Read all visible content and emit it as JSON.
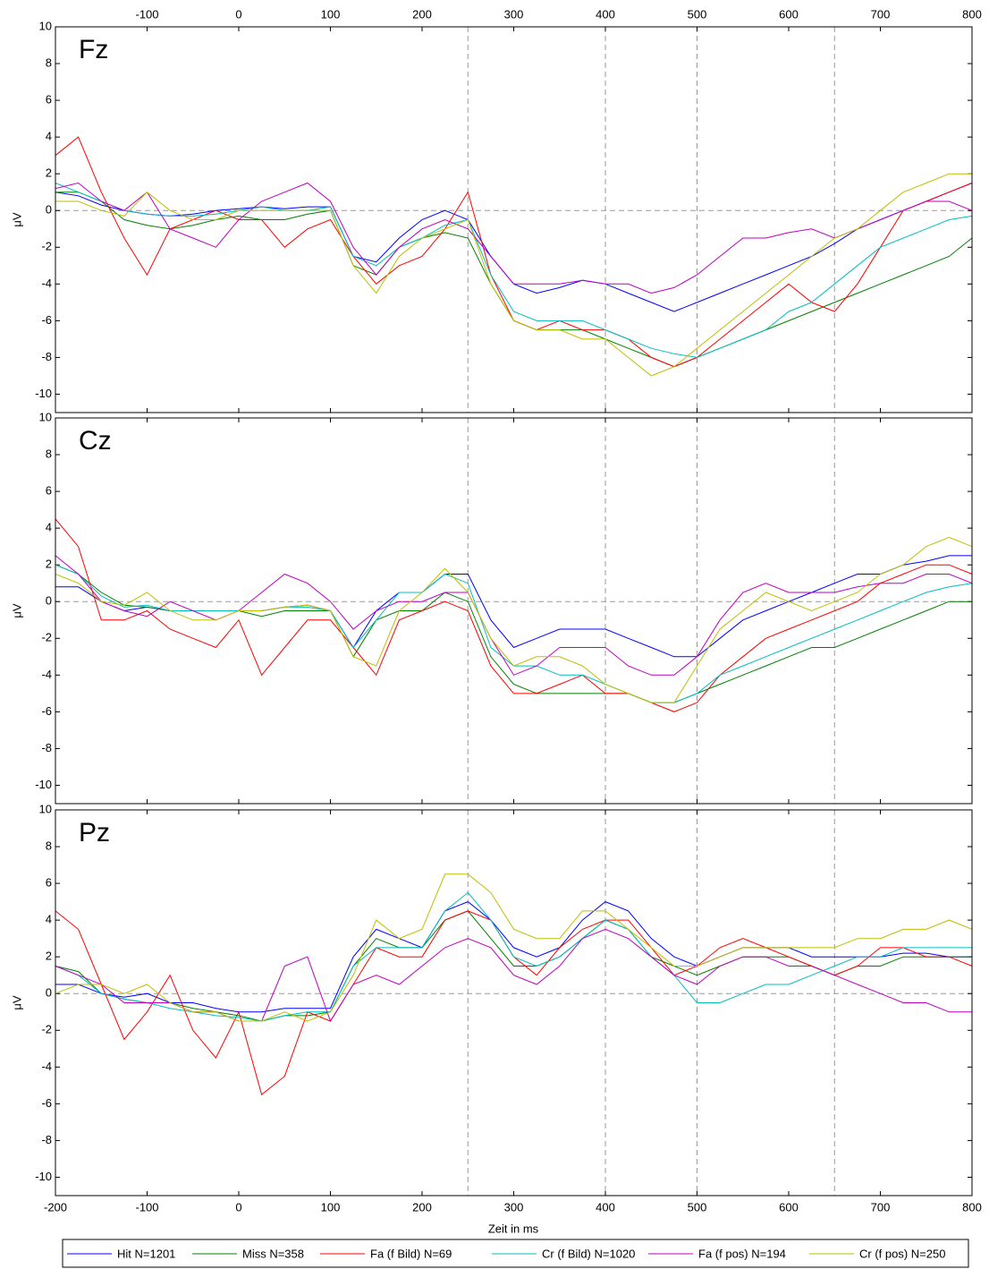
{
  "x": [
    -200,
    -175,
    -150,
    -125,
    -100,
    -75,
    -50,
    -25,
    0,
    25,
    50,
    75,
    100,
    125,
    150,
    175,
    200,
    225,
    250,
    275,
    300,
    325,
    350,
    375,
    400,
    425,
    450,
    475,
    500,
    525,
    550,
    575,
    600,
    625,
    650,
    675,
    700,
    725,
    750,
    775,
    800
  ],
  "xlim": [
    -200,
    800
  ],
  "xticks": [
    -200,
    -100,
    0,
    100,
    200,
    300,
    400,
    500,
    600,
    700,
    800
  ],
  "top_xticks": [
    -100,
    0,
    100,
    200,
    300,
    400,
    500,
    600,
    700,
    800
  ],
  "xlabel": "Zeit in ms",
  "ylabel": "μV",
  "vlines": [
    250,
    400,
    500,
    650
  ],
  "hline": 0,
  "legend": [
    {
      "name": "Hit N=1201",
      "color": "#0000ff"
    },
    {
      "name": "Miss N=358",
      "color": "#008000"
    },
    {
      "name": "Fa (f Bild) N=69",
      "color": "#ff0000"
    },
    {
      "name": "Cr (f Bild) N=1020",
      "color": "#00bfbf"
    },
    {
      "name": "Fa (f pos) N=194",
      "color": "#bf00bf"
    },
    {
      "name": "Cr (f pos) N=250",
      "color": "#bfbf00"
    }
  ],
  "chart_data": [
    {
      "type": "line",
      "title": "Fz",
      "ylim": [
        -11,
        10
      ],
      "yticks": [
        -10,
        -8,
        -6,
        -4,
        -2,
        0,
        2,
        4,
        6,
        8,
        10
      ],
      "xtick_labels": "top",
      "series": [
        {
          "values": [
            1.0,
            0.8,
            0.3,
            0.0,
            -0.2,
            -0.3,
            -0.2,
            0,
            0.1,
            0.2,
            0.1,
            0.2,
            0.2,
            -2.5,
            -2.8,
            -1.5,
            -0.5,
            0.0,
            -0.5,
            -2.5,
            -4.0,
            -4.5,
            -4.2,
            -3.8,
            -4.0,
            -4.5,
            -5.0,
            -5.5,
            -5.0,
            -4.5,
            -4.0,
            -3.5,
            -3.0,
            -2.5,
            -1.8,
            -1.0,
            -0.5,
            0.0,
            0.5,
            1.0,
            1.5
          ]
        },
        {
          "values": [
            1.0,
            1.0,
            0.5,
            -0.5,
            -0.8,
            -1.0,
            -0.8,
            -0.5,
            -0.3,
            -0.5,
            -0.5,
            -0.2,
            0.0,
            -3.0,
            -3.5,
            -2.0,
            -1.5,
            -1.2,
            -1.5,
            -4.0,
            -6.0,
            -6.5,
            -6.5,
            -6.5,
            -7.0,
            -7.5,
            -8.0,
            -8.5,
            -8.0,
            -7.5,
            -7.0,
            -6.5,
            -6.0,
            -5.5,
            -5.0,
            -4.5,
            -4.0,
            -3.5,
            -3.0,
            -2.5,
            -1.5
          ]
        },
        {
          "values": [
            3.0,
            4.0,
            1.0,
            -1.5,
            -3.5,
            -1.0,
            -0.5,
            0.0,
            -0.5,
            -0.5,
            -2.0,
            -1.0,
            -0.5,
            -2.5,
            -4.0,
            -3.0,
            -2.5,
            -1.0,
            1.0,
            -3.5,
            -6.0,
            -6.5,
            -6.0,
            -6.5,
            -6.5,
            -7.0,
            -8.0,
            -8.5,
            -8.0,
            -7.0,
            -6.0,
            -5.0,
            -4.0,
            -5.0,
            -5.5,
            -4.0,
            -2.0,
            0.0,
            0.5,
            1.0,
            1.5
          ]
        },
        {
          "values": [
            1.5,
            1.0,
            0.5,
            0.0,
            -0.2,
            -0.3,
            -0.3,
            -0.2,
            0.0,
            0.2,
            0.0,
            0.0,
            0.2,
            -2.5,
            -3.0,
            -2.0,
            -1.5,
            -0.8,
            -0.5,
            -3.5,
            -5.5,
            -6.0,
            -6.0,
            -6.0,
            -6.5,
            -7.0,
            -7.5,
            -7.8,
            -8.0,
            -7.5,
            -7.0,
            -6.5,
            -5.5,
            -5.0,
            -4.0,
            -3.0,
            -2.0,
            -1.5,
            -1.0,
            -0.5,
            -0.3
          ]
        },
        {
          "values": [
            1.2,
            1.5,
            0.5,
            0.0,
            1.0,
            -1.0,
            -1.5,
            -2.0,
            -0.5,
            0.5,
            1.0,
            1.5,
            0.5,
            -2.0,
            -3.5,
            -2.0,
            -1.0,
            -0.5,
            -1.0,
            -2.5,
            -4.0,
            -4.0,
            -4.0,
            -3.8,
            -4.0,
            -4.0,
            -4.5,
            -4.2,
            -3.5,
            -2.5,
            -1.5,
            -1.5,
            -1.2,
            -1.0,
            -1.5,
            -1.0,
            -0.5,
            0.0,
            0.5,
            0.5,
            0.0
          ]
        },
        {
          "values": [
            0.5,
            0.5,
            0.0,
            -0.3,
            1.0,
            0.0,
            -0.5,
            -0.5,
            0.0,
            0.0,
            0.0,
            0.0,
            0.0,
            -3.0,
            -4.5,
            -2.5,
            -1.5,
            -1.0,
            -0.5,
            -4.0,
            -6.0,
            -6.5,
            -6.5,
            -7.0,
            -7.0,
            -8.0,
            -9.0,
            -8.5,
            -7.5,
            -6.5,
            -5.5,
            -4.5,
            -3.5,
            -2.5,
            -1.5,
            -1.0,
            0.0,
            1.0,
            1.5,
            2.0,
            2.0
          ]
        }
      ]
    },
    {
      "type": "line",
      "title": "Cz",
      "ylim": [
        -11,
        10
      ],
      "yticks": [
        -10,
        -8,
        -6,
        -4,
        -2,
        0,
        2,
        4,
        6,
        8,
        10
      ],
      "xtick_labels": "none",
      "series": [
        {
          "values": [
            0.8,
            0.8,
            0.0,
            -0.5,
            -0.3,
            -0.5,
            -0.5,
            -0.5,
            -0.5,
            -0.5,
            -0.3,
            -0.2,
            -0.5,
            -2.5,
            -0.5,
            0.5,
            0.5,
            1.5,
            1.5,
            -1.0,
            -2.5,
            -2.0,
            -1.5,
            -1.5,
            -1.5,
            -2.0,
            -2.5,
            -3.0,
            -3.0,
            -2.0,
            -1.0,
            -0.5,
            0.0,
            0.5,
            1.0,
            1.5,
            1.5,
            2.0,
            2.2,
            2.5,
            2.5
          ]
        },
        {
          "values": [
            2.0,
            1.5,
            0.5,
            -0.2,
            -0.3,
            -0.5,
            -0.5,
            -0.5,
            -0.5,
            -0.8,
            -0.5,
            -0.5,
            -0.5,
            -3.0,
            -1.0,
            -0.5,
            -0.5,
            0.5,
            0.0,
            -3.0,
            -4.5,
            -5.0,
            -5.0,
            -5.0,
            -5.0,
            -5.0,
            -5.5,
            -5.5,
            -5.0,
            -4.5,
            -4.0,
            -3.5,
            -3.0,
            -2.5,
            -2.5,
            -2.0,
            -1.5,
            -1.0,
            -0.5,
            0.0,
            0.0
          ]
        },
        {
          "values": [
            4.5,
            3.0,
            -1.0,
            -1.0,
            -0.5,
            -1.5,
            -2.0,
            -2.5,
            -1.0,
            -4.0,
            -2.5,
            -1.0,
            -1.0,
            -2.5,
            -4.0,
            -1.0,
            -0.5,
            0.0,
            -0.5,
            -3.5,
            -5.0,
            -5.0,
            -4.5,
            -4.0,
            -5.0,
            -5.0,
            -5.5,
            -6.0,
            -5.5,
            -4.0,
            -3.0,
            -2.0,
            -1.5,
            -1.0,
            -0.5,
            0.0,
            1.0,
            1.5,
            2.0,
            2.0,
            1.5
          ]
        },
        {
          "values": [
            2.0,
            1.5,
            0.3,
            -0.3,
            -0.2,
            -0.5,
            -0.5,
            -0.5,
            -0.5,
            -0.5,
            -0.3,
            -0.3,
            -0.5,
            -2.5,
            -1.0,
            0.5,
            0.5,
            1.5,
            1.0,
            -2.5,
            -3.5,
            -3.5,
            -4.0,
            -4.0,
            -4.5,
            -5.0,
            -5.5,
            -5.5,
            -5.0,
            -4.0,
            -3.5,
            -3.0,
            -2.5,
            -2.0,
            -1.5,
            -1.0,
            -0.5,
            0.0,
            0.5,
            0.8,
            1.0
          ]
        },
        {
          "values": [
            2.5,
            1.5,
            0.0,
            -0.5,
            -0.8,
            0.0,
            -0.5,
            -1.0,
            -0.5,
            0.5,
            1.5,
            1.0,
            0.0,
            -1.5,
            -0.5,
            0.0,
            0.0,
            0.5,
            0.5,
            -2.0,
            -4.0,
            -3.5,
            -2.5,
            -2.5,
            -2.5,
            -3.5,
            -4.0,
            -4.0,
            -3.0,
            -1.0,
            0.5,
            1.0,
            0.5,
            0.5,
            0.5,
            0.8,
            1.0,
            1.0,
            1.5,
            1.5,
            1.0
          ]
        },
        {
          "values": [
            1.5,
            1.0,
            0.0,
            -0.2,
            0.5,
            -0.5,
            -1.0,
            -1.0,
            -0.5,
            -0.5,
            -0.3,
            -0.2,
            -0.5,
            -3.0,
            -3.5,
            -0.5,
            0.5,
            1.8,
            0.5,
            -2.0,
            -3.5,
            -3.0,
            -3.0,
            -3.5,
            -4.5,
            -5.0,
            -5.5,
            -5.5,
            -3.5,
            -1.5,
            -0.5,
            0.5,
            0.0,
            -0.5,
            0.0,
            0.5,
            1.5,
            2.0,
            3.0,
            3.5,
            3.0
          ]
        }
      ]
    },
    {
      "type": "line",
      "title": "Pz",
      "ylim": [
        -11,
        10
      ],
      "yticks": [
        -10,
        -8,
        -6,
        -4,
        -2,
        0,
        2,
        4,
        6,
        8,
        10
      ],
      "xtick_labels": "bottom",
      "series": [
        {
          "values": [
            0.5,
            0.5,
            0.0,
            -0.2,
            0.0,
            -0.5,
            -0.5,
            -0.8,
            -1.0,
            -1.0,
            -0.8,
            -0.8,
            -0.8,
            2.0,
            3.5,
            3.0,
            2.5,
            4.5,
            5.0,
            4.0,
            2.5,
            2.0,
            2.5,
            4.0,
            5.0,
            4.5,
            3.0,
            2.0,
            1.5,
            2.0,
            2.5,
            2.5,
            2.5,
            2.0,
            2.0,
            2.0,
            2.0,
            2.2,
            2.2,
            2.0,
            2.0
          ]
        },
        {
          "values": [
            1.5,
            1.2,
            0.0,
            -0.3,
            -0.5,
            -0.5,
            -0.8,
            -1.0,
            -1.2,
            -1.5,
            -1.2,
            -1.2,
            -1.0,
            1.5,
            3.0,
            2.5,
            2.5,
            4.0,
            4.5,
            3.0,
            1.5,
            1.5,
            2.0,
            3.0,
            4.0,
            3.5,
            2.0,
            1.5,
            1.0,
            1.5,
            2.0,
            2.0,
            2.0,
            1.5,
            1.0,
            1.5,
            1.5,
            2.0,
            2.0,
            2.0,
            2.0
          ]
        },
        {
          "values": [
            4.5,
            3.5,
            0.5,
            -2.5,
            -1.0,
            1.0,
            -2.0,
            -3.5,
            -1.0,
            -5.5,
            -4.5,
            -1.0,
            -1.5,
            0.5,
            2.5,
            2.0,
            2.0,
            4.0,
            4.5,
            4.0,
            2.0,
            1.0,
            2.5,
            3.5,
            4.0,
            4.0,
            2.5,
            1.0,
            1.5,
            2.5,
            3.0,
            2.5,
            2.0,
            1.5,
            1.0,
            1.5,
            2.5,
            2.5,
            2.0,
            2.0,
            1.5
          ]
        },
        {
          "values": [
            1.5,
            1.0,
            0.0,
            -0.3,
            -0.5,
            -0.8,
            -1.0,
            -1.2,
            -1.3,
            -1.5,
            -1.2,
            -1.0,
            -1.0,
            1.5,
            2.5,
            2.5,
            2.5,
            4.5,
            5.5,
            4.0,
            2.0,
            1.5,
            2.0,
            3.0,
            4.0,
            3.5,
            2.0,
            1.0,
            -0.5,
            -0.5,
            0.0,
            0.5,
            0.5,
            1.0,
            1.5,
            2.0,
            2.0,
            2.5,
            2.5,
            2.5,
            2.5
          ]
        },
        {
          "values": [
            1.5,
            1.0,
            0.5,
            -0.5,
            -0.5,
            -0.5,
            -1.0,
            -1.0,
            -1.5,
            -1.5,
            1.5,
            2.0,
            -1.5,
            0.5,
            1.0,
            0.5,
            1.5,
            2.5,
            3.0,
            2.5,
            1.0,
            0.5,
            1.5,
            3.0,
            3.5,
            3.0,
            2.0,
            1.0,
            0.5,
            1.5,
            2.0,
            2.0,
            1.5,
            1.5,
            1.0,
            0.5,
            0.0,
            -0.5,
            -0.5,
            -1.0,
            -1.0
          ]
        },
        {
          "values": [
            0.0,
            0.5,
            0.5,
            0.0,
            0.5,
            -0.5,
            -1.0,
            -1.0,
            -1.5,
            -1.5,
            -1.0,
            -1.5,
            -1.0,
            1.0,
            4.0,
            3.0,
            3.5,
            6.5,
            6.5,
            5.5,
            3.5,
            3.0,
            3.0,
            4.5,
            4.5,
            3.5,
            2.5,
            1.5,
            1.5,
            2.0,
            2.5,
            2.5,
            2.5,
            2.5,
            2.5,
            3.0,
            3.0,
            3.5,
            3.5,
            4.0,
            3.5
          ]
        }
      ]
    }
  ]
}
